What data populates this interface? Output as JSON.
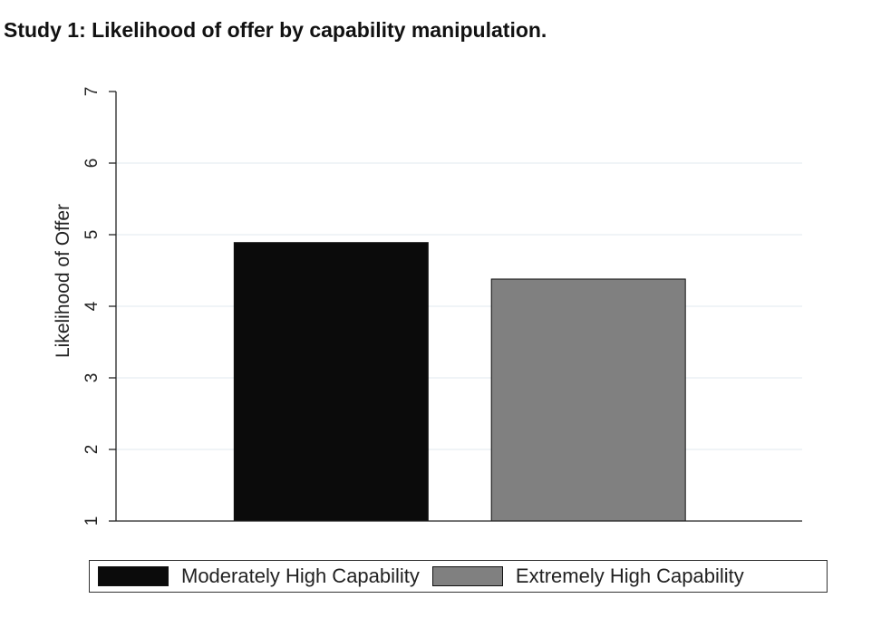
{
  "title": "Study 1: Likelihood of offer by capability manipulation.",
  "chart_data": {
    "type": "bar",
    "title": "Study 1: Likelihood of offer by capability manipulation.",
    "xlabel": "",
    "ylabel": "Likelihood of Offer",
    "ylim": [
      1,
      7
    ],
    "yticks": [
      1,
      2,
      3,
      4,
      5,
      6,
      7
    ],
    "grid": true,
    "legend_position": "bottom",
    "series": [
      {
        "name": "Moderately High Capability",
        "value": 4.89,
        "color": "#0b0b0b"
      },
      {
        "name": "Extremely High Capability",
        "value": 4.38,
        "color": "#808080"
      }
    ]
  }
}
